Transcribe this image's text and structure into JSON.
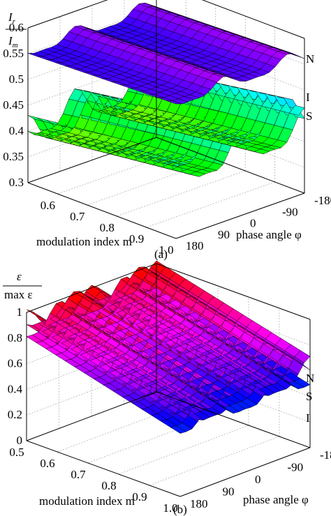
{
  "chart_data": [
    {
      "type": "surface3d",
      "panel_label": "(a)",
      "z_label": {
        "num": "I",
        "num_sub": "r",
        "den": "I",
        "den_sub": "m"
      },
      "xlabel": "modulation index m",
      "ylabel": "phase angle φ",
      "x_ticks": [
        "0.6",
        "0.7",
        "0.8",
        "0.9",
        "1.0"
      ],
      "x_range": [
        0.5,
        1.0
      ],
      "y_ticks": [
        "-180",
        "-90",
        "0",
        "90",
        "180"
      ],
      "y_range": [
        -180,
        180
      ],
      "z_ticks": [
        "0.3",
        "0.35",
        "0.4",
        "0.45",
        "0.5",
        "0.55",
        "0.6"
      ],
      "z_range": [
        0.3,
        0.6
      ],
      "grid": true,
      "series": [
        {
          "name": "N",
          "base": 0.555,
          "m_slope": 0.02,
          "phase_amp": 0.012,
          "phase_period": 180,
          "phase_offset": 45
        },
        {
          "name": "I",
          "base": 0.41,
          "m_slope": 0.09,
          "phase_amp": 0.03,
          "phase_period": 180,
          "phase_offset": 45
        },
        {
          "name": "S",
          "base": 0.39,
          "m_slope": 0.07,
          "phase_amp": 0.03,
          "phase_period": 180,
          "phase_offset": 0
        }
      ]
    },
    {
      "type": "surface3d",
      "panel_label": "(b)",
      "z_label": {
        "num": "ε",
        "den": "max ε"
      },
      "xlabel": "modulation index m",
      "ylabel": "phase angle φ",
      "x_ticks": [
        "0.5",
        "0.6",
        "0.7",
        "0.8",
        "0.9",
        "1.0"
      ],
      "x_range": [
        0.5,
        1.0
      ],
      "y_ticks": [
        "-180",
        "-90",
        "0",
        "90",
        "180"
      ],
      "y_range": [
        -180,
        180
      ],
      "z_ticks": [
        "0",
        "0.2",
        "0.4",
        "0.6",
        "0.8",
        "1"
      ],
      "z_range": [
        0,
        1
      ],
      "grid": true,
      "series": [
        {
          "name": "N",
          "base": 0.93,
          "m_slope": -0.6,
          "phase_amp": 0.07,
          "phase_period": 180,
          "phase_offset": 45
        },
        {
          "name": "S",
          "base": 0.9,
          "m_slope": -0.62,
          "phase_amp": 0.09,
          "phase_period": 180,
          "phase_offset": 0
        },
        {
          "name": "I",
          "base": 0.87,
          "m_slope": -0.64,
          "phase_amp": 0.09,
          "phase_period": 180,
          "phase_offset": 90
        }
      ]
    }
  ]
}
